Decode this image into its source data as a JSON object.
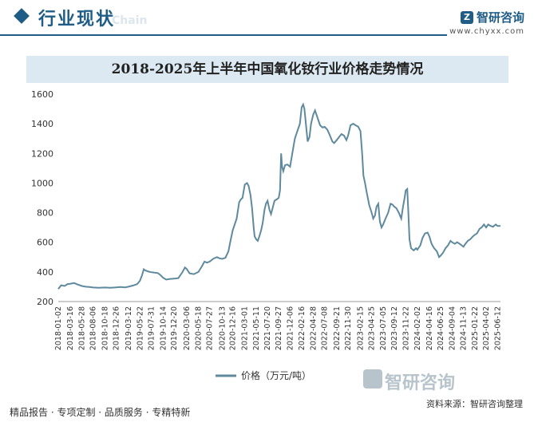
{
  "header": {
    "title": "行业现状",
    "watermark_chain": "Chain",
    "brand_name": "智研咨询",
    "brand_url": "www.chyxx.com"
  },
  "colors": {
    "primary": "#1f5d87",
    "line": "#5f8a9e",
    "title_band": "#dde9f2"
  },
  "footer": {
    "left": "精品报告 · 专项定制 · 品质服务 · 专精特新",
    "source_label": "资料来源：",
    "source_value": "智研咨询整理",
    "logo_text": "智研咨询"
  },
  "chart_data": {
    "type": "line",
    "title": "2018-2025年上半年中国氧化钕行业价格走势情况",
    "xlabel": "",
    "ylabel": "",
    "ylim": [
      200,
      1600
    ],
    "yticks": [
      200,
      400,
      600,
      800,
      1000,
      1200,
      1400,
      1600
    ],
    "xlim": [
      "2018-01-02",
      "2025-06-30"
    ],
    "xtick_labels": [
      "2018-01-02",
      "2018-03-16",
      "2018-05-28",
      "2018-08-06",
      "2018-10-18",
      "2018-12-26",
      "2019-03-12",
      "2019-05-22",
      "2019-07-31",
      "2019-10-14",
      "2019-12-20",
      "2020-03-06",
      "2020-05-18",
      "2020-07-27",
      "2020-10-13",
      "2020-12-16",
      "2021-03-01",
      "2021-05-11",
      "2021-07-20",
      "2021-09-27",
      "2021-12-06",
      "2022-02-16",
      "2022-04-28",
      "2022-07-08",
      "2022-09-21",
      "2022-11-30",
      "2023-02-15",
      "2023-04-25",
      "2023-07-05",
      "2023-09-12",
      "2023-11-22",
      "2024-02-02",
      "2024-04-16",
      "2024-06-25",
      "2024-09-04",
      "2024-11-13",
      "2025-01-22",
      "2025-04-02",
      "2025-06-12"
    ],
    "grid": false,
    "legend_position": "bottom",
    "series": [
      {
        "name": "价格（万元/吨）",
        "points": [
          [
            "2018-01-02",
            285
          ],
          [
            "2018-01-20",
            310
          ],
          [
            "2018-02-10",
            305
          ],
          [
            "2018-03-01",
            318
          ],
          [
            "2018-03-16",
            320
          ],
          [
            "2018-04-10",
            325
          ],
          [
            "2018-05-01",
            315
          ],
          [
            "2018-05-28",
            305
          ],
          [
            "2018-06-20",
            300
          ],
          [
            "2018-07-15",
            298
          ],
          [
            "2018-08-06",
            295
          ],
          [
            "2018-09-10",
            293
          ],
          [
            "2018-10-18",
            295
          ],
          [
            "2018-11-20",
            293
          ],
          [
            "2018-12-26",
            296
          ],
          [
            "2019-01-20",
            298
          ],
          [
            "2019-02-20",
            296
          ],
          [
            "2019-03-12",
            300
          ],
          [
            "2019-04-10",
            308
          ],
          [
            "2019-05-05",
            318
          ],
          [
            "2019-05-22",
            340
          ],
          [
            "2019-06-05",
            380
          ],
          [
            "2019-06-15",
            418
          ],
          [
            "2019-06-25",
            410
          ],
          [
            "2019-07-15",
            402
          ],
          [
            "2019-07-31",
            398
          ],
          [
            "2019-08-20",
            395
          ],
          [
            "2019-09-10",
            392
          ],
          [
            "2019-09-25",
            380
          ],
          [
            "2019-10-14",
            360
          ],
          [
            "2019-11-01",
            348
          ],
          [
            "2019-11-20",
            352
          ],
          [
            "2019-12-20",
            355
          ],
          [
            "2020-01-15",
            358
          ],
          [
            "2020-02-10",
            400
          ],
          [
            "2020-02-25",
            430
          ],
          [
            "2020-03-06",
            420
          ],
          [
            "2020-03-25",
            390
          ],
          [
            "2020-04-20",
            385
          ],
          [
            "2020-05-18",
            400
          ],
          [
            "2020-06-10",
            440
          ],
          [
            "2020-06-25",
            470
          ],
          [
            "2020-07-10",
            462
          ],
          [
            "2020-07-27",
            470
          ],
          [
            "2020-08-20",
            490
          ],
          [
            "2020-09-10",
            500
          ],
          [
            "2020-09-25",
            492
          ],
          [
            "2020-10-13",
            488
          ],
          [
            "2020-11-01",
            495
          ],
          [
            "2020-11-20",
            540
          ],
          [
            "2020-12-01",
            600
          ],
          [
            "2020-12-16",
            680
          ],
          [
            "2021-01-10",
            760
          ],
          [
            "2021-01-25",
            870
          ],
          [
            "2021-02-05",
            890
          ],
          [
            "2021-02-15",
            900
          ],
          [
            "2021-03-01",
            990
          ],
          [
            "2021-03-15",
            1000
          ],
          [
            "2021-03-25",
            980
          ],
          [
            "2021-04-05",
            920
          ],
          [
            "2021-04-15",
            830
          ],
          [
            "2021-04-25",
            700
          ],
          [
            "2021-05-01",
            640
          ],
          [
            "2021-05-11",
            620
          ],
          [
            "2021-05-20",
            610
          ],
          [
            "2021-05-30",
            640
          ],
          [
            "2021-06-10",
            680
          ],
          [
            "2021-06-20",
            730
          ],
          [
            "2021-07-01",
            820
          ],
          [
            "2021-07-10",
            860
          ],
          [
            "2021-07-20",
            880
          ],
          [
            "2021-08-01",
            820
          ],
          [
            "2021-08-10",
            790
          ],
          [
            "2021-08-20",
            830
          ],
          [
            "2021-09-01",
            880
          ],
          [
            "2021-09-15",
            890
          ],
          [
            "2021-09-27",
            900
          ],
          [
            "2021-10-05",
            950
          ],
          [
            "2021-10-12",
            1200
          ],
          [
            "2021-10-18",
            1110
          ],
          [
            "2021-10-25",
            1080
          ],
          [
            "2021-11-05",
            1120
          ],
          [
            "2021-11-20",
            1125
          ],
          [
            "2021-12-06",
            1110
          ],
          [
            "2021-12-20",
            1200
          ],
          [
            "2022-01-05",
            1300
          ],
          [
            "2022-01-20",
            1350
          ],
          [
            "2022-02-05",
            1400
          ],
          [
            "2022-02-16",
            1510
          ],
          [
            "2022-02-25",
            1530
          ],
          [
            "2022-03-05",
            1500
          ],
          [
            "2022-03-15",
            1390
          ],
          [
            "2022-03-25",
            1280
          ],
          [
            "2022-04-05",
            1310
          ],
          [
            "2022-04-15",
            1400
          ],
          [
            "2022-04-28",
            1460
          ],
          [
            "2022-05-10",
            1490
          ],
          [
            "2022-05-25",
            1440
          ],
          [
            "2022-06-10",
            1390
          ],
          [
            "2022-06-25",
            1375
          ],
          [
            "2022-07-08",
            1380
          ],
          [
            "2022-07-25",
            1360
          ],
          [
            "2022-08-10",
            1320
          ],
          [
            "2022-08-25",
            1280
          ],
          [
            "2022-09-05",
            1270
          ],
          [
            "2022-09-21",
            1290
          ],
          [
            "2022-10-05",
            1310
          ],
          [
            "2022-10-20",
            1330
          ],
          [
            "2022-11-05",
            1320
          ],
          [
            "2022-11-20",
            1290
          ],
          [
            "2022-11-30",
            1320
          ],
          [
            "2022-12-15",
            1390
          ],
          [
            "2023-01-01",
            1400
          ],
          [
            "2023-01-15",
            1390
          ],
          [
            "2023-02-01",
            1380
          ],
          [
            "2023-02-15",
            1350
          ],
          [
            "2023-02-25",
            1200
          ],
          [
            "2023-03-05",
            1050
          ],
          [
            "2023-03-15",
            1000
          ],
          [
            "2023-03-25",
            940
          ],
          [
            "2023-04-10",
            850
          ],
          [
            "2023-04-25",
            800
          ],
          [
            "2023-05-05",
            760
          ],
          [
            "2023-05-15",
            780
          ],
          [
            "2023-05-25",
            840
          ],
          [
            "2023-06-05",
            860
          ],
          [
            "2023-06-15",
            740
          ],
          [
            "2023-06-25",
            700
          ],
          [
            "2023-07-05",
            720
          ],
          [
            "2023-07-20",
            760
          ],
          [
            "2023-08-05",
            800
          ],
          [
            "2023-08-20",
            860
          ],
          [
            "2023-09-01",
            855
          ],
          [
            "2023-09-12",
            840
          ],
          [
            "2023-09-25",
            830
          ],
          [
            "2023-10-10",
            800
          ],
          [
            "2023-10-25",
            760
          ],
          [
            "2023-11-05",
            840
          ],
          [
            "2023-11-15",
            900
          ],
          [
            "2023-11-22",
            950
          ],
          [
            "2023-12-01",
            960
          ],
          [
            "2023-12-08",
            800
          ],
          [
            "2023-12-15",
            620
          ],
          [
            "2023-12-25",
            560
          ],
          [
            "2024-01-10",
            545
          ],
          [
            "2024-01-25",
            560
          ],
          [
            "2024-02-02",
            550
          ],
          [
            "2024-02-20",
            580
          ],
          [
            "2024-03-05",
            630
          ],
          [
            "2024-03-20",
            660
          ],
          [
            "2024-04-05",
            665
          ],
          [
            "2024-04-16",
            640
          ],
          [
            "2024-04-30",
            590
          ],
          [
            "2024-05-15",
            560
          ],
          [
            "2024-06-01",
            540
          ],
          [
            "2024-06-15",
            500
          ],
          [
            "2024-06-25",
            510
          ],
          [
            "2024-07-10",
            530
          ],
          [
            "2024-07-25",
            560
          ],
          [
            "2024-08-10",
            580
          ],
          [
            "2024-08-25",
            610
          ],
          [
            "2024-09-04",
            600
          ],
          [
            "2024-09-20",
            590
          ],
          [
            "2024-10-05",
            600
          ],
          [
            "2024-10-20",
            590
          ],
          [
            "2024-11-01",
            580
          ],
          [
            "2024-11-13",
            570
          ],
          [
            "2024-11-25",
            590
          ],
          [
            "2024-12-10",
            610
          ],
          [
            "2024-12-25",
            620
          ],
          [
            "2025-01-10",
            640
          ],
          [
            "2025-01-22",
            650
          ],
          [
            "2025-02-05",
            660
          ],
          [
            "2025-02-20",
            690
          ],
          [
            "2025-03-05",
            700
          ],
          [
            "2025-03-20",
            720
          ],
          [
            "2025-04-02",
            700
          ],
          [
            "2025-04-15",
            720
          ],
          [
            "2025-05-01",
            710
          ],
          [
            "2025-05-15",
            705
          ],
          [
            "2025-06-01",
            720
          ],
          [
            "2025-06-12",
            710
          ],
          [
            "2025-06-30",
            710
          ]
        ]
      }
    ]
  }
}
